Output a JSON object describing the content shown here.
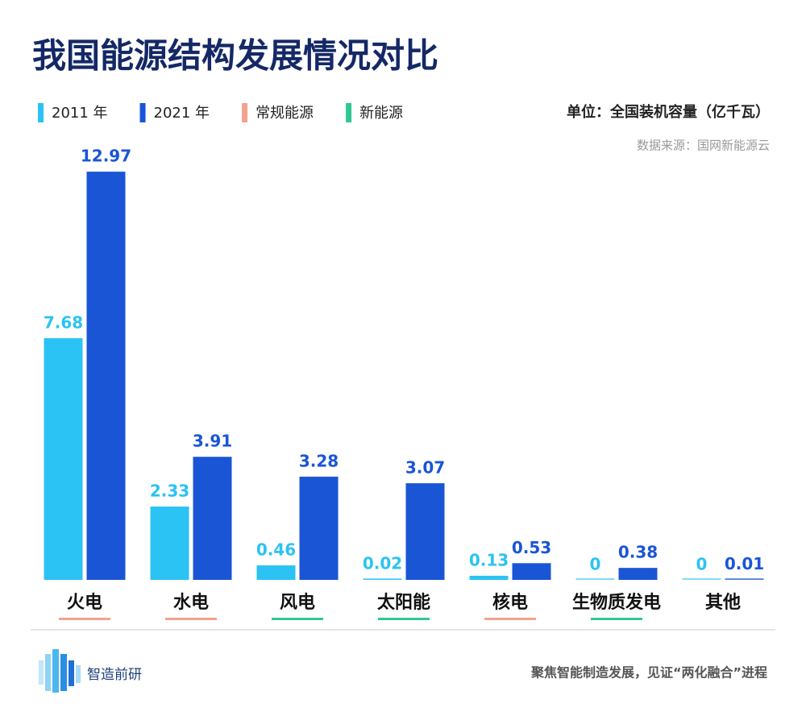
{
  "chart_data": {
    "type": "bar",
    "title": "我国能源结构发展情况对比",
    "unit": "单位：全国装机容量（亿千瓦）",
    "source": "数据来源：国网新能源云",
    "categories": [
      "火电",
      "水电",
      "风电",
      "太阳能",
      "核电",
      "生物质发电",
      "其他"
    ],
    "series": [
      {
        "name": "2011 年",
        "color": "#2bc3f3",
        "values": [
          7.68,
          2.33,
          0.46,
          0.02,
          0.13,
          0,
          0
        ]
      },
      {
        "name": "2021 年",
        "color": "#1a55d6",
        "values": [
          12.97,
          3.91,
          3.28,
          3.07,
          0.53,
          0.38,
          0.01
        ]
      }
    ],
    "category_groups": [
      {
        "name": "常规能源",
        "color": "#f3a28f"
      },
      {
        "name": "新能源",
        "color": "#2fc796"
      }
    ],
    "category_underline_colors": [
      "#f3a28f",
      "#f3a28f",
      "#2fc796",
      "#2fc796",
      "#f3a28f",
      "#2fc796",
      null
    ],
    "ylim": [
      0,
      13
    ],
    "footer": {
      "logo": "智造前研",
      "slogan": "聚焦智能制造发展，见证“两化融合”进程"
    }
  }
}
